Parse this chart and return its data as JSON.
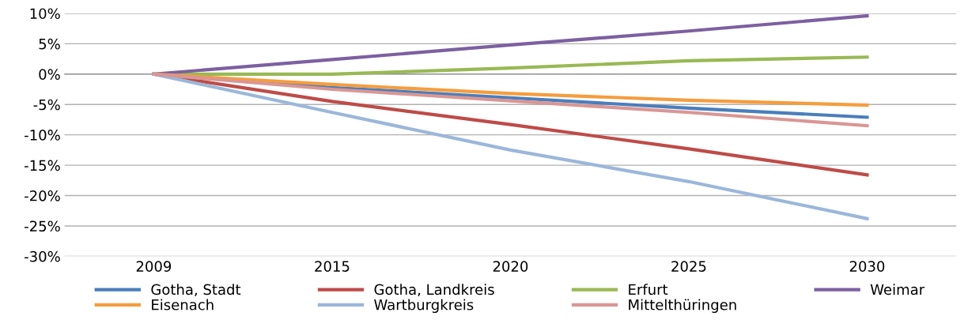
{
  "chart_data": {
    "type": "line",
    "categories": [
      "2009",
      "2015",
      "2020",
      "2025",
      "2030"
    ],
    "series": [
      {
        "name": "Gotha, Stadt",
        "color": "#4a7ebb",
        "values": [
          0,
          -2.2,
          -3.9,
          -5.6,
          -7.1
        ]
      },
      {
        "name": "Gotha, Landkreis",
        "color": "#be4b48",
        "values": [
          0,
          -4.5,
          -8.3,
          -12.3,
          -16.6
        ]
      },
      {
        "name": "Erfurt",
        "color": "#98b954",
        "values": [
          0,
          0,
          1.0,
          2.2,
          2.8
        ]
      },
      {
        "name": "Weimar",
        "color": "#7d60a0",
        "values": [
          0,
          2.4,
          4.8,
          7.1,
          9.6
        ]
      },
      {
        "name": "Eisenach",
        "color": "#f59d3d",
        "values": [
          0,
          -1.7,
          -3.2,
          -4.3,
          -5.1
        ]
      },
      {
        "name": "Wartburgkreis",
        "color": "#9bb7d9",
        "values": [
          0,
          -6.3,
          -12.5,
          -17.7,
          -23.8
        ]
      },
      {
        "name": "Mittelthüringen",
        "color": "#d99694",
        "values": [
          0,
          -2.5,
          -4.4,
          -6.3,
          -8.5
        ]
      }
    ],
    "ylim": [
      -30,
      10
    ],
    "yticks": [
      {
        "value": -30,
        "label": "-30%"
      },
      {
        "value": -25,
        "label": "-25%"
      },
      {
        "value": -20,
        "label": "-20%"
      },
      {
        "value": -15,
        "label": "-15%"
      },
      {
        "value": -10,
        "label": "-10%"
      },
      {
        "value": -5,
        "label": "-5%"
      },
      {
        "value": 0,
        "label": "0%"
      },
      {
        "value": 5,
        "label": "5%"
      },
      {
        "value": 10,
        "label": "10%"
      }
    ],
    "grid": "y",
    "legend": "bottom",
    "marker": "none",
    "line_style": "solid"
  }
}
